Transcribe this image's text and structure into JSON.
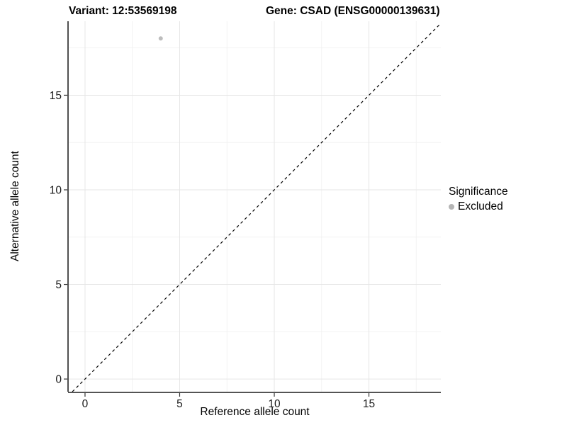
{
  "titles": {
    "variant": "Variant: 12:53569198",
    "gene": "Gene: CSAD (ENSG00000139631)"
  },
  "axes": {
    "x_label": "Reference allele count",
    "y_label": "Alternative allele count"
  },
  "legend": {
    "title": "Significance",
    "items": [
      {
        "label": "Excluded",
        "color": "#b5b5b5"
      }
    ]
  },
  "colors": {
    "background": "#ffffff",
    "grid_major": "#e6e6e6",
    "grid_minor": "#f2f2f2",
    "axis_line": "#3c3c3c",
    "tick_mark": "#333333",
    "tick_label": "#1a1a1a",
    "point": "#bdbdbd",
    "reference_line": "#000000"
  },
  "chart_data": {
    "type": "scatter",
    "title": "Variant: 12:53569198 | Gene: CSAD (ENSG00000139631)",
    "xlabel": "Reference allele count",
    "ylabel": "Alternative allele count",
    "xlim": [
      -0.86,
      18.8
    ],
    "ylim": [
      -0.67,
      18.91
    ],
    "x_major_ticks": [
      0,
      5,
      10,
      15
    ],
    "y_major_ticks": [
      0,
      5,
      10,
      15
    ],
    "x_tick_labels": [
      "0",
      "5",
      "10",
      "15"
    ],
    "y_tick_labels": [
      "0",
      "5",
      "10",
      "15"
    ],
    "x_minor_ticks": [
      2.5,
      7.5,
      12.5,
      17.5
    ],
    "y_minor_ticks": [
      2.5,
      7.5,
      12.5,
      17.5
    ],
    "grid": true,
    "legend_position": "right",
    "series": [
      {
        "name": "Excluded",
        "color": "#bdbdbd",
        "points": [
          {
            "x": 4,
            "y": 18
          }
        ]
      }
    ],
    "reference_line": {
      "type": "identity",
      "style": "dashed",
      "color": "#000000",
      "dash": "4 4"
    }
  }
}
